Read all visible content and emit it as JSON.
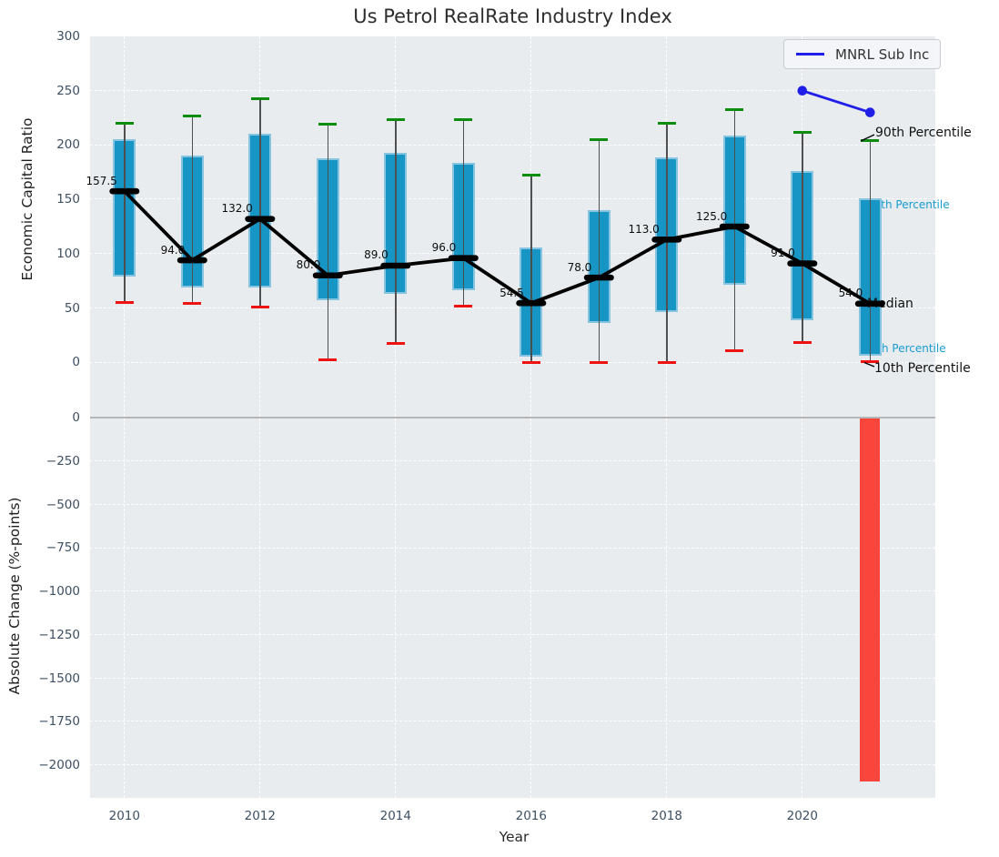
{
  "title": "Us Petrol RealRate Industry Index",
  "legend": {
    "label": "MNRL Sub Inc"
  },
  "axes": {
    "top_ylabel": "Economic Capital Ratio",
    "bottom_ylabel": "Absolute Change (%-points)",
    "xlabel": "Year"
  },
  "annotations": {
    "p90": "90th Percentile",
    "p75": "75th Percentile",
    "median": "Median",
    "p25": "25th Percentile",
    "p10": "10th Percentile"
  },
  "colors": {
    "bar_blue": "#1795c5",
    "bar_red": "#fa453d",
    "cap_green": "#0e8c10",
    "cap_red": "#ee1310",
    "median_black": "#000000",
    "mnrl_blue": "#1f1fe8",
    "cyan_label": "#189cd1",
    "plot_bg": "#e8ecee"
  },
  "chart_data": [
    {
      "type": "box",
      "title": "Us Petrol RealRate Industry Index",
      "ylabel": "Economic Capital Ratio",
      "ylim": [
        -51,
        300
      ],
      "yticks": [
        300,
        250,
        200,
        150,
        100,
        50,
        0
      ],
      "grid": true,
      "categories": [
        2010,
        2011,
        2012,
        2013,
        2014,
        2015,
        2016,
        2017,
        2018,
        2019,
        2020,
        2021
      ],
      "series": [
        {
          "name": "90th Percentile",
          "role": "p90",
          "values": [
            220,
            227,
            243,
            219,
            223,
            223,
            172,
            205,
            220,
            233,
            212,
            204
          ]
        },
        {
          "name": "75th Percentile",
          "role": "p75",
          "values": [
            205,
            190,
            210,
            188,
            193,
            184,
            106,
            140,
            189,
            209,
            176,
            151
          ]
        },
        {
          "name": "Median",
          "role": "median",
          "values": [
            157.5,
            94.0,
            132.0,
            80.0,
            89.0,
            96.0,
            54.5,
            78.0,
            113.0,
            125.0,
            91.0,
            54.0
          ]
        },
        {
          "name": "25th Percentile",
          "role": "p25",
          "values": [
            79,
            69,
            69,
            57,
            63,
            66,
            5,
            36,
            46,
            71,
            39,
            6
          ]
        },
        {
          "name": "10th Percentile",
          "role": "p10",
          "values": [
            55,
            54,
            51,
            2,
            17,
            52,
            0,
            0,
            0,
            11,
            18,
            1
          ]
        }
      ],
      "overlay_line": {
        "name": "MNRL Sub Inc",
        "x": [
          2020,
          2021
        ],
        "values": [
          250,
          230
        ]
      },
      "legend_position": "upper right",
      "median_label_format": "one_decimal"
    },
    {
      "type": "bar",
      "ylabel": "Absolute Change (%-points)",
      "xlabel": "Year",
      "ylim": [
        -2190,
        0
      ],
      "yticks": [
        0,
        -250,
        -500,
        -750,
        -1000,
        -1250,
        -1500,
        -1750,
        -2000
      ],
      "xticks": [
        2010,
        2012,
        2014,
        2016,
        2018,
        2020
      ],
      "x": [
        2021
      ],
      "values": [
        -2090
      ]
    }
  ]
}
